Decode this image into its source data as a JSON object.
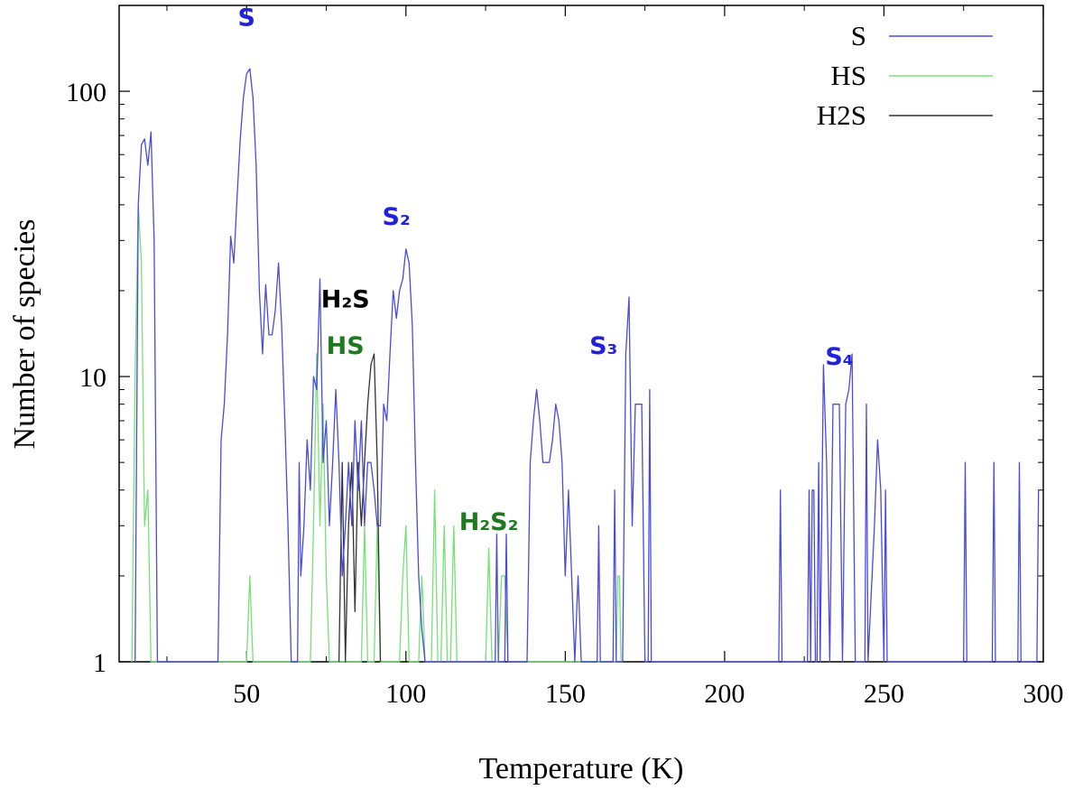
{
  "chart_data": {
    "type": "line",
    "title": "",
    "xlabel": "Temperature (K)",
    "ylabel": "Number of species",
    "xlim": [
      10,
      300
    ],
    "ylim": [
      1,
      200
    ],
    "yscale": "log",
    "grid": false,
    "legend_position": "top-right",
    "x_ticks": [
      50,
      100,
      150,
      200,
      250,
      300
    ],
    "x_tick_labels": [
      "50",
      "100",
      "150",
      "200",
      "250",
      "300"
    ],
    "y_ticks": [
      1,
      10,
      100
    ],
    "y_tick_labels": [
      "1",
      "10",
      "100"
    ],
    "series": [
      {
        "name": "S",
        "color": "#4a4ae0",
        "points": [
          [
            15,
            1
          ],
          [
            16,
            40
          ],
          [
            17,
            65
          ],
          [
            18,
            68
          ],
          [
            19,
            55
          ],
          [
            20,
            72
          ],
          [
            21,
            30
          ],
          [
            22,
            1
          ],
          [
            41,
            1
          ],
          [
            42,
            6
          ],
          [
            43,
            8
          ],
          [
            44,
            14
          ],
          [
            45,
            31
          ],
          [
            46,
            25
          ],
          [
            47,
            42
          ],
          [
            48,
            68
          ],
          [
            49,
            95
          ],
          [
            50,
            115
          ],
          [
            51,
            120
          ],
          [
            52,
            95
          ],
          [
            53,
            55
          ],
          [
            54,
            20
          ],
          [
            55,
            12
          ],
          [
            56,
            21
          ],
          [
            57,
            14
          ],
          [
            58,
            14
          ],
          [
            59,
            17
          ],
          [
            60,
            25
          ],
          [
            61,
            15
          ],
          [
            62,
            7
          ],
          [
            63,
            3
          ],
          [
            64,
            1
          ],
          [
            66,
            1
          ],
          [
            66.5,
            5
          ],
          [
            67,
            2
          ],
          [
            68,
            3
          ],
          [
            69,
            6
          ],
          [
            70,
            4
          ],
          [
            71,
            10
          ],
          [
            72,
            9
          ],
          [
            73,
            22
          ],
          [
            74,
            5
          ],
          [
            75,
            7
          ],
          [
            76,
            3
          ],
          [
            77,
            5
          ],
          [
            78,
            9
          ],
          [
            79,
            5
          ],
          [
            80,
            2
          ],
          [
            81,
            3
          ],
          [
            82,
            5
          ],
          [
            83,
            3
          ],
          [
            84,
            7
          ],
          [
            85,
            4
          ],
          [
            86,
            7
          ],
          [
            87,
            3
          ],
          [
            88,
            5
          ],
          [
            89,
            5
          ],
          [
            90,
            4
          ],
          [
            91,
            3
          ],
          [
            92,
            3
          ],
          [
            93,
            8
          ],
          [
            94,
            7
          ],
          [
            95,
            12
          ],
          [
            96,
            20
          ],
          [
            97,
            16
          ],
          [
            98,
            20
          ],
          [
            99,
            22
          ],
          [
            100,
            28
          ],
          [
            101,
            25
          ],
          [
            102,
            15
          ],
          [
            103,
            5
          ],
          [
            104,
            2
          ],
          [
            105,
            1.3
          ],
          [
            106,
            1
          ],
          [
            128,
            1
          ],
          [
            128.5,
            2.8
          ],
          [
            129,
            1
          ],
          [
            131,
            1
          ],
          [
            131.5,
            2.8
          ],
          [
            132,
            1
          ],
          [
            138,
            1
          ],
          [
            139,
            5
          ],
          [
            140,
            7
          ],
          [
            141,
            9
          ],
          [
            142,
            7
          ],
          [
            143,
            5
          ],
          [
            144,
            5
          ],
          [
            145,
            5
          ],
          [
            146,
            6
          ],
          [
            147,
            8
          ],
          [
            148,
            7
          ],
          [
            149,
            5
          ],
          [
            150,
            2
          ],
          [
            151,
            4
          ],
          [
            152,
            2
          ],
          [
            153,
            1
          ],
          [
            154,
            2
          ],
          [
            155,
            1
          ],
          [
            160,
            1
          ],
          [
            160.5,
            3
          ],
          [
            161,
            1
          ],
          [
            165,
            1
          ],
          [
            165.5,
            4
          ],
          [
            166,
            1
          ],
          [
            168,
            1
          ],
          [
            169,
            12
          ],
          [
            170,
            19
          ],
          [
            171,
            3
          ],
          [
            172,
            8
          ],
          [
            173,
            8
          ],
          [
            174,
            8
          ],
          [
            175,
            1
          ],
          [
            176,
            1
          ],
          [
            176.5,
            9
          ],
          [
            177,
            1
          ],
          [
            217,
            1
          ],
          [
            217.5,
            4
          ],
          [
            218,
            1
          ],
          [
            226,
            1
          ],
          [
            226.5,
            4
          ],
          [
            227,
            1
          ],
          [
            227.5,
            4
          ],
          [
            228,
            4
          ],
          [
            228.5,
            1
          ],
          [
            229,
            1
          ],
          [
            229.5,
            5
          ],
          [
            230,
            1
          ],
          [
            231,
            11
          ],
          [
            232,
            5
          ],
          [
            233,
            1
          ],
          [
            234,
            8
          ],
          [
            235,
            8
          ],
          [
            236,
            8
          ],
          [
            237,
            1
          ],
          [
            238,
            8
          ],
          [
            239,
            9
          ],
          [
            240,
            12
          ],
          [
            241,
            1
          ],
          [
            244,
            1
          ],
          [
            244.5,
            8
          ],
          [
            245,
            1
          ],
          [
            247,
            3
          ],
          [
            248,
            6
          ],
          [
            249,
            4
          ],
          [
            250,
            1
          ],
          [
            250.5,
            4
          ],
          [
            251,
            1
          ],
          [
            275,
            1
          ],
          [
            275.5,
            5
          ],
          [
            276,
            1
          ],
          [
            284,
            1
          ],
          [
            284.5,
            5
          ],
          [
            285,
            1
          ],
          [
            292,
            1
          ],
          [
            292.5,
            5
          ],
          [
            293,
            1
          ],
          [
            298,
            1
          ],
          [
            298.5,
            4
          ],
          [
            299,
            4
          ]
        ]
      },
      {
        "name": "HS",
        "color": "#77e077",
        "points": [
          [
            14,
            1
          ],
          [
            15,
            10
          ],
          [
            16,
            40
          ],
          [
            17,
            25
          ],
          [
            18,
            3
          ],
          [
            19,
            4
          ],
          [
            20,
            1
          ],
          [
            50,
            1
          ],
          [
            51,
            2
          ],
          [
            52,
            1
          ],
          [
            70,
            1
          ],
          [
            71,
            3
          ],
          [
            72,
            12
          ],
          [
            73,
            3
          ],
          [
            74,
            8
          ],
          [
            75,
            2
          ],
          [
            76,
            1
          ],
          [
            86,
            1
          ],
          [
            87,
            3
          ],
          [
            88,
            1
          ],
          [
            90,
            1
          ],
          [
            91,
            3
          ],
          [
            92,
            1
          ],
          [
            98,
            1
          ],
          [
            99,
            2
          ],
          [
            100,
            3
          ],
          [
            101,
            1
          ],
          [
            104,
            1
          ],
          [
            105,
            2
          ],
          [
            106,
            1
          ],
          [
            108,
            1
          ],
          [
            109,
            4
          ],
          [
            110,
            1
          ],
          [
            111,
            1
          ],
          [
            112,
            3
          ],
          [
            113,
            1
          ],
          [
            114,
            1
          ],
          [
            115,
            3
          ],
          [
            116,
            1
          ],
          [
            125,
            1
          ],
          [
            126,
            2.5
          ],
          [
            127,
            1
          ],
          [
            129,
            1
          ],
          [
            130,
            2
          ],
          [
            131,
            2
          ],
          [
            132,
            1
          ],
          [
            166,
            1
          ],
          [
            166.5,
            2
          ],
          [
            167,
            2
          ],
          [
            167.5,
            1
          ]
        ]
      },
      {
        "name": "H2S",
        "color": "#333333",
        "points": [
          [
            79,
            1
          ],
          [
            80,
            5
          ],
          [
            81,
            1
          ],
          [
            82,
            3
          ],
          [
            83,
            5
          ],
          [
            84,
            1.5
          ],
          [
            85,
            5
          ],
          [
            86,
            3
          ],
          [
            87,
            5
          ],
          [
            88,
            8
          ],
          [
            89,
            11
          ],
          [
            90,
            12
          ],
          [
            91,
            5
          ],
          [
            92,
            1
          ]
        ]
      }
    ],
    "annotations": [
      {
        "text": "S",
        "x": 50,
        "y": 170,
        "color": "#2222dd"
      },
      {
        "text": "S₂",
        "x": 97,
        "y": 34,
        "color": "#2222dd"
      },
      {
        "text": "H₂S",
        "x": 81,
        "y": 17.5,
        "color": "#000000"
      },
      {
        "text": "HS",
        "x": 81,
        "y": 12,
        "color": "#1f7a1f"
      },
      {
        "text": "S₃",
        "x": 162,
        "y": 12,
        "color": "#2222dd"
      },
      {
        "text": "S₄",
        "x": 236,
        "y": 11,
        "color": "#2222dd"
      },
      {
        "text": "H₂S₂",
        "x": 126,
        "y": 2.9,
        "color": "#1f7a1f"
      }
    ]
  }
}
